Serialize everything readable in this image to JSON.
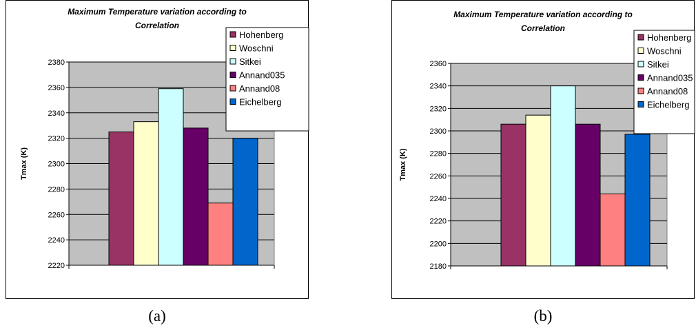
{
  "captions": [
    "(a)",
    "(b)"
  ],
  "chart_data": [
    {
      "type": "bar",
      "title": "Maximum Temperature variation according to Correlation",
      "title_lines": [
        "Maximum Temperature variation according to",
        "Correlation"
      ],
      "xlabel": "",
      "ylabel": "Tmax (K)",
      "ylim": [
        2220,
        2380
      ],
      "y_ticks": [
        2220,
        2240,
        2260,
        2280,
        2300,
        2320,
        2340,
        2360,
        2380
      ],
      "grid": true,
      "legend_position": "top-right",
      "series": [
        {
          "name": "Hohenberg",
          "value": 2325,
          "color": "#993366"
        },
        {
          "name": "Woschni",
          "value": 2333,
          "color": "#FFFFCC"
        },
        {
          "name": "Sitkei",
          "value": 2359,
          "color": "#CCFFFF"
        },
        {
          "name": "Annand035",
          "value": 2328,
          "color": "#660066"
        },
        {
          "name": "Annand08",
          "value": 2269,
          "color": "#FF8080"
        },
        {
          "name": "Eichelberg",
          "value": 2320,
          "color": "#0066CC"
        }
      ]
    },
    {
      "type": "bar",
      "title": "Maximum Temperature variation according to Correlation",
      "title_lines": [
        "Maximum Temperature variation according to",
        "Correlation"
      ],
      "xlabel": "",
      "ylabel": "Tmax (K)",
      "ylim": [
        2180,
        2360
      ],
      "y_ticks": [
        2180,
        2200,
        2220,
        2240,
        2260,
        2280,
        2300,
        2320,
        2340,
        2360
      ],
      "grid": true,
      "legend_position": "top-right",
      "series": [
        {
          "name": "Hohenberg",
          "value": 2306,
          "color": "#993366"
        },
        {
          "name": "Woschni",
          "value": 2314,
          "color": "#FFFFCC"
        },
        {
          "name": "Sitkei",
          "value": 2340,
          "color": "#CCFFFF"
        },
        {
          "name": "Annand035",
          "value": 2306,
          "color": "#660066"
        },
        {
          "name": "Annand08",
          "value": 2244,
          "color": "#FF8080"
        },
        {
          "name": "Eichelberg",
          "value": 2297,
          "color": "#0066CC"
        }
      ]
    }
  ]
}
